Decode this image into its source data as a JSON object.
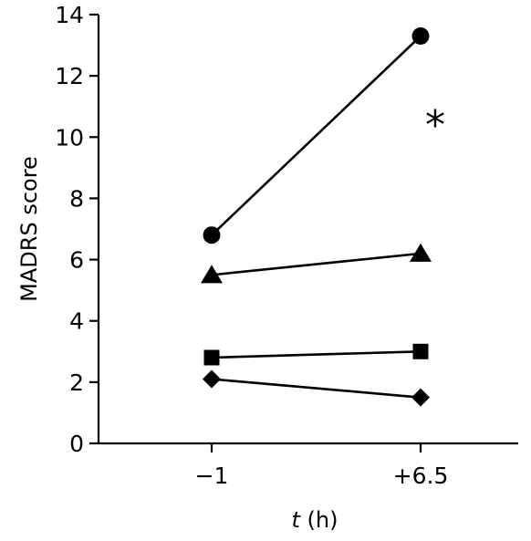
{
  "chart_data": {
    "type": "line",
    "categories": [
      "−1",
      "+6.5"
    ],
    "xlabel_italic": "t",
    "xlabel_rest": " (h)",
    "ylabel": "MADRS score",
    "ylim": [
      0,
      14
    ],
    "yticks": [
      0,
      2,
      4,
      6,
      8,
      10,
      12,
      14
    ],
    "grid": false,
    "legend": "none",
    "series": [
      {
        "marker": "circle",
        "values": [
          6.8,
          13.3
        ]
      },
      {
        "marker": "triangle",
        "values": [
          5.5,
          6.2
        ]
      },
      {
        "marker": "square",
        "values": [
          2.8,
          3.0
        ]
      },
      {
        "marker": "diamond",
        "values": [
          2.1,
          1.5
        ]
      }
    ],
    "annotations": [
      {
        "text": "*",
        "category_index": 1,
        "y": 10.6
      }
    ]
  }
}
